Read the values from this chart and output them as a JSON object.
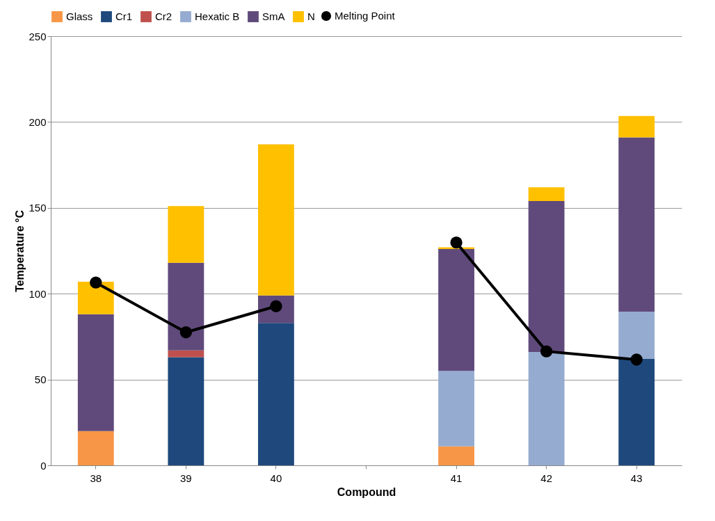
{
  "chart_data": {
    "type": "bar",
    "stacked": true,
    "xlabel": "Compound",
    "ylabel": "Temperature °C",
    "categories": [
      "38",
      "39",
      "40",
      null,
      "41",
      "42",
      "43"
    ],
    "series": [
      {
        "name": "Glass",
        "color": "#f79646",
        "values": [
          20,
          0,
          0,
          null,
          11,
          0,
          0
        ]
      },
      {
        "name": "Cr1",
        "color": "#1f497d",
        "values": [
          0,
          63,
          83,
          null,
          0,
          0,
          62
        ]
      },
      {
        "name": "Cr2",
        "color": "#c0504d",
        "values": [
          0,
          4,
          0,
          null,
          0,
          0,
          0
        ]
      },
      {
        "name": "Hexatic B",
        "color": "#95abd0",
        "values": [
          0,
          0,
          0,
          null,
          44,
          66,
          27.5
        ]
      },
      {
        "name": "SmA",
        "color": "#604a7b",
        "values": [
          68,
          51,
          16,
          null,
          71,
          88,
          101.5
        ]
      },
      {
        "name": "N",
        "color": "#ffc000",
        "values": [
          19,
          33,
          88,
          null,
          1,
          8,
          12.5
        ]
      },
      {
        "name": "Melting Point",
        "color": "#000000",
        "type": "line",
        "marker": "circle",
        "line_style": "solid",
        "values": [
          106.5,
          77.5,
          92.7,
          null,
          129.8,
          66.4,
          61.6
        ]
      }
    ],
    "ylim": [
      0,
      250
    ],
    "yticks": [
      0,
      50,
      100,
      150,
      200,
      250
    ],
    "grid": "y",
    "legend": "top"
  }
}
